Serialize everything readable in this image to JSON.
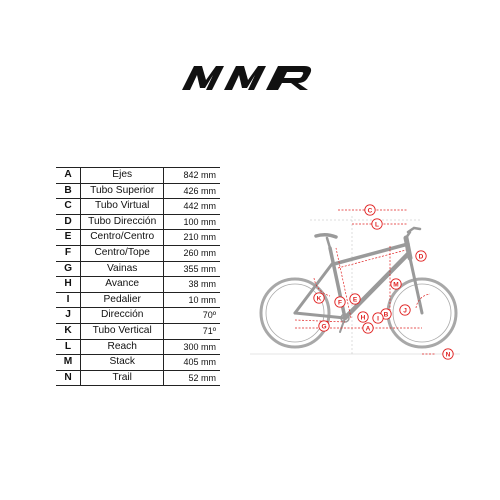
{
  "brand": {
    "name": "MMR",
    "color": "#111111"
  },
  "geometry": {
    "rows": [
      {
        "key": "A",
        "name": "Ejes",
        "value": "842 mm"
      },
      {
        "key": "B",
        "name": "Tubo Superior",
        "value": "426 mm"
      },
      {
        "key": "C",
        "name": "Tubo Virtual",
        "value": "442 mm"
      },
      {
        "key": "D",
        "name": "Tubo Dirección",
        "value": "100 mm"
      },
      {
        "key": "E",
        "name": "Centro/Centro",
        "value": "210 mm"
      },
      {
        "key": "F",
        "name": "Centro/Tope",
        "value": "260 mm"
      },
      {
        "key": "G",
        "name": "Vainas",
        "value": "355 mm"
      },
      {
        "key": "H",
        "name": "Avance",
        "value": "38 mm"
      },
      {
        "key": "I",
        "name": "Pedalier",
        "value": "10 mm"
      },
      {
        "key": "J",
        "name": "Dirección",
        "value": "70º"
      },
      {
        "key": "K",
        "name": "Tubo Vertical",
        "value": "71º"
      },
      {
        "key": "L",
        "name": "Reach",
        "value": "300 mm"
      },
      {
        "key": "M",
        "name": "Stack",
        "value": "405 mm"
      },
      {
        "key": "N",
        "name": "Trail",
        "value": "52 mm"
      }
    ]
  },
  "diagram": {
    "marker_color": "#e02020",
    "frame_color": "#9a9a9a",
    "labels": {
      "A": "A",
      "B": "B",
      "C": "C",
      "D": "D",
      "E": "E",
      "F": "F",
      "G": "G",
      "H": "H",
      "I": "I",
      "J": "J",
      "K": "K",
      "L": "L",
      "M": "M",
      "N": "N"
    }
  }
}
